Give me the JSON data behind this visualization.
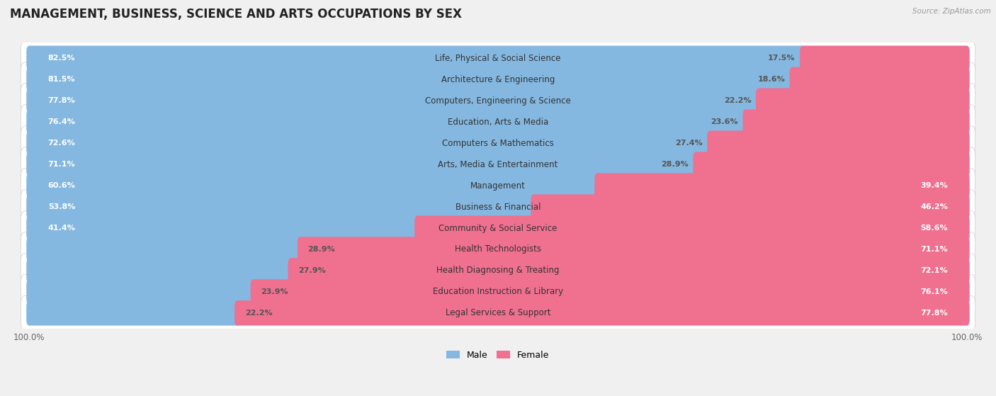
{
  "title": "MANAGEMENT, BUSINESS, SCIENCE AND ARTS OCCUPATIONS BY SEX",
  "source": "Source: ZipAtlas.com",
  "categories": [
    "Life, Physical & Social Science",
    "Architecture & Engineering",
    "Computers, Engineering & Science",
    "Education, Arts & Media",
    "Computers & Mathematics",
    "Arts, Media & Entertainment",
    "Management",
    "Business & Financial",
    "Community & Social Service",
    "Health Technologists",
    "Health Diagnosing & Treating",
    "Education Instruction & Library",
    "Legal Services & Support"
  ],
  "male_pct": [
    82.5,
    81.5,
    77.8,
    76.4,
    72.6,
    71.1,
    60.6,
    53.8,
    41.4,
    28.9,
    27.9,
    23.9,
    22.2
  ],
  "female_pct": [
    17.5,
    18.6,
    22.2,
    23.6,
    27.4,
    28.9,
    39.4,
    46.2,
    58.6,
    71.1,
    72.1,
    76.1,
    77.8
  ],
  "male_color": "#85b8e0",
  "female_color": "#f07090",
  "row_bg_color": "#ffffff",
  "outer_bg_color": "#f0f0f0",
  "title_fontsize": 12,
  "label_fontsize": 8.5,
  "pct_fontsize": 8,
  "legend_fontsize": 9,
  "bar_height": 0.58,
  "male_inside_threshold": 35,
  "female_inside_threshold": 35
}
